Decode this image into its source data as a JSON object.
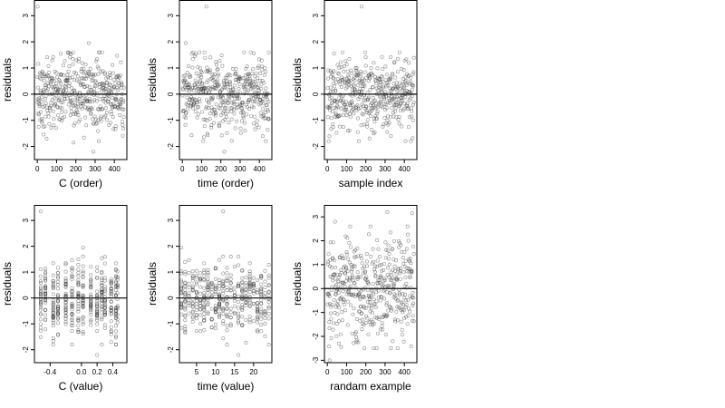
{
  "chart_data": [
    {
      "type": "scatter",
      "xlabel": "C (order)",
      "ylabel": "residuals",
      "xlim": [
        -15,
        465
      ],
      "ylim": [
        -2.5,
        3.6
      ],
      "xticks": [
        0,
        100,
        200,
        300,
        400
      ],
      "xtick_labels": [
        "0",
        "100",
        "200",
        "300",
        "400"
      ],
      "yticks": [
        -2,
        -1,
        0,
        1,
        2,
        3
      ],
      "ytick_labels": [
        "-2",
        "-1",
        "0",
        "1",
        "2",
        "3"
      ],
      "reference_line_y": 0,
      "grid": false,
      "n_points": 450,
      "point_style": "open circle",
      "x_distribution": "sequential index 1 to 450",
      "y_distribution": "residuals roughly in [-1.8, 1.6], one outlier near 3.35",
      "points": [
        [
          2,
          3.35
        ],
        [
          268,
          1.95
        ],
        [
          7,
          -1.25
        ],
        [
          188,
          -1.85
        ],
        [
          291,
          -2.2
        ]
      ]
    },
    {
      "type": "scatter",
      "xlabel": "time (order)",
      "ylabel": "residuals",
      "xlim": [
        -15,
        465
      ],
      "ylim": [
        -2.5,
        3.6
      ],
      "xticks": [
        0,
        100,
        200,
        300,
        400
      ],
      "xtick_labels": [
        "0",
        "100",
        "200",
        "300",
        "400"
      ],
      "yticks": [
        -2,
        -1,
        0,
        1,
        2,
        3
      ],
      "ytick_labels": [
        "-2",
        "-1",
        "0",
        "1",
        "2",
        "3"
      ],
      "reference_line_y": 0,
      "grid": false,
      "n_points": 450,
      "point_style": "open circle",
      "x_distribution": "sequential index 1 to 450",
      "y_distribution": "residuals roughly in [-1.8, 1.6], one outlier near 3.35",
      "points": [
        [
          125,
          3.35
        ],
        [
          18,
          1.95
        ],
        [
          218,
          -2.2
        ],
        [
          433,
          -1.8
        ]
      ]
    },
    {
      "type": "scatter",
      "xlabel": "sample index",
      "ylabel": "residuals",
      "xlim": [
        -15,
        465
      ],
      "ylim": [
        -2.5,
        3.6
      ],
      "xticks": [
        0,
        100,
        200,
        300,
        400
      ],
      "xtick_labels": [
        "0",
        "100",
        "200",
        "300",
        "400"
      ],
      "yticks": [
        -2,
        -1,
        0,
        1,
        2,
        3
      ],
      "ytick_labels": [
        "-2",
        "-1",
        "0",
        "1",
        "2",
        "3"
      ],
      "reference_line_y": 0,
      "grid": false,
      "n_points": 450,
      "point_style": "open circle",
      "x_distribution": "sequential index 1 to 450",
      "y_distribution": "residuals roughly in [-1.8, 1.6], one outlier near 3.35",
      "points": [
        [
          178,
          3.35
        ],
        [
          158,
          -1.45
        ],
        [
          406,
          -1.8
        ],
        [
          330,
          -1.6
        ]
      ]
    },
    {
      "type": "scatter",
      "xlabel": "C (value)",
      "ylabel": "residuals",
      "xlim": [
        -0.6,
        0.58
      ],
      "ylim": [
        -2.5,
        3.6
      ],
      "xticks": [
        -0.4,
        0.0,
        0.2,
        0.4
      ],
      "xtick_labels": [
        "-0.4",
        "0.0",
        "0.2",
        "0.4"
      ],
      "yticks": [
        -2,
        -1,
        0,
        1,
        2,
        3
      ],
      "ytick_labels": [
        "-2",
        "-1",
        "0",
        "1",
        "2",
        "3"
      ],
      "reference_line_y": 0,
      "grid": false,
      "n_points": 450,
      "point_style": "open circle",
      "x_distribution": "points stacked in vertical columns at discrete C values",
      "x_levels": [
        -0.52,
        -0.46,
        -0.36,
        -0.3,
        -0.2,
        -0.12,
        -0.04,
        0.02,
        0.12,
        0.2,
        0.26,
        0.3,
        0.38,
        0.44,
        0.46
      ],
      "y_distribution": "residuals roughly in [-1.8, 1.6], one outlier near 3.35",
      "points": [
        [
          -0.52,
          3.35
        ],
        [
          0.02,
          1.95
        ],
        [
          0.2,
          -2.2
        ]
      ]
    },
    {
      "type": "scatter",
      "xlabel": "time (value)",
      "ylabel": "residuals",
      "xlim": [
        0.5,
        24.8
      ],
      "ylim": [
        -2.5,
        3.6
      ],
      "xticks": [
        5,
        10,
        15,
        20
      ],
      "xtick_labels": [
        "5",
        "10",
        "15",
        "20"
      ],
      "yticks": [
        -2,
        -1,
        0,
        1,
        2,
        3
      ],
      "ytick_labels": [
        "-2",
        "-1",
        "0",
        "1",
        "2",
        "3"
      ],
      "reference_line_y": 0,
      "grid": false,
      "n_points": 450,
      "point_style": "open circle",
      "x_distribution": "points stacked in vertical columns at integer time values 1 to 24",
      "y_distribution": "residuals roughly in [-1.8, 1.6], one outlier near 3.35",
      "points": [
        [
          12,
          3.35
        ],
        [
          1,
          1.95
        ],
        [
          16,
          -2.2
        ],
        [
          24,
          -1.8
        ]
      ]
    },
    {
      "type": "scatter",
      "xlabel": "randam example",
      "ylabel": "residuals",
      "xlim": [
        -15,
        465
      ],
      "ylim": [
        -3.1,
        3.5
      ],
      "xticks": [
        0,
        100,
        200,
        300,
        400
      ],
      "xtick_labels": [
        "0",
        "100",
        "200",
        "300",
        "400"
      ],
      "yticks": [
        -3,
        -2,
        -1,
        0,
        1,
        2,
        3
      ],
      "ytick_labels": [
        "-3",
        "-2",
        "-1",
        "0",
        "1",
        "2",
        "3"
      ],
      "reference_line_y": 0,
      "grid": false,
      "n_points": 450,
      "point_style": "open circle",
      "x_distribution": "sequential index 1 to 450",
      "y_distribution": "random residuals roughly in [-2.5, 3.2]",
      "points": [
        [
          12,
          -3.0
        ],
        [
          40,
          2.8
        ],
        [
          440,
          3.15
        ],
        [
          312,
          3.2
        ],
        [
          60,
          -2.3
        ]
      ]
    }
  ]
}
